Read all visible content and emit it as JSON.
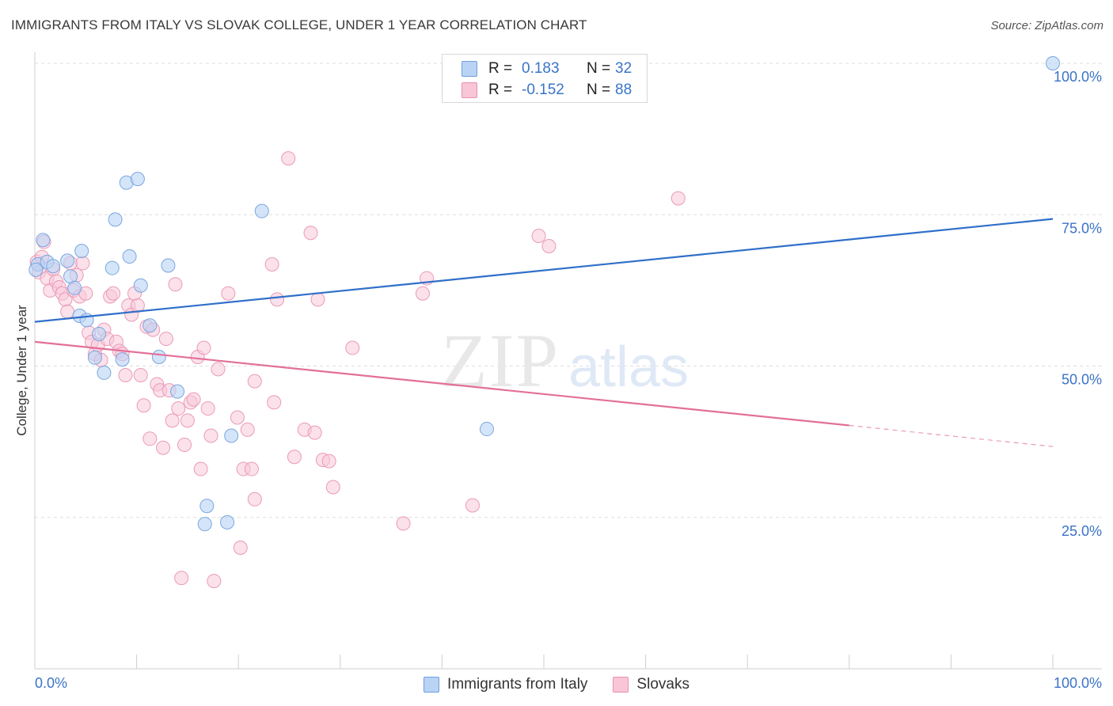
{
  "header": {
    "title": "IMMIGRANTS FROM ITALY VS SLOVAK COLLEGE, UNDER 1 YEAR CORRELATION CHART",
    "source": "Source: ZipAtlas.com"
  },
  "watermark": {
    "zip": "ZIP",
    "atlas": "atlas"
  },
  "legend": {
    "rows": [
      {
        "r_label": "R =",
        "r_value": "0.183",
        "n_label": "N =",
        "n_value": "32",
        "fill": "#b9d3f5",
        "stroke": "#6f9fdc"
      },
      {
        "r_label": "R =",
        "r_value": "-0.152",
        "n_label": "N =",
        "n_value": "88",
        "fill": "#f8c6d6",
        "stroke": "#e890ad"
      }
    ]
  },
  "bottom_legend": [
    {
      "label": "Immigrants from Italy",
      "fill": "#b9d3f5",
      "stroke": "#6f9fdc"
    },
    {
      "label": "Slovaks",
      "fill": "#f8c6d6",
      "stroke": "#e890ad"
    }
  ],
  "colors": {
    "blue_line": "#2f6fca",
    "pink_line": "#e36f99",
    "blue_point_fill": "#b9d3f5",
    "blue_point_stroke": "#7aa6df",
    "pink_point_fill": "#f8c9d8",
    "pink_point_stroke": "#eb9ab7",
    "tick_label": "#3b73c7",
    "grid": "#dedede"
  },
  "chart_data": {
    "type": "scatter",
    "title": "IMMIGRANTS FROM ITALY VS SLOVAK COLLEGE, UNDER 1 YEAR CORRELATION CHART",
    "xlabel": "",
    "ylabel": "College, Under 1 year",
    "xlim": [
      0,
      100
    ],
    "ylim": [
      0,
      100
    ],
    "x_tick_labels": [
      "0.0%",
      "100.0%"
    ],
    "y_ticks": [
      25,
      50,
      75,
      100
    ],
    "y_tick_labels": [
      "25.0%",
      "50.0%",
      "75.0%",
      "100.0%"
    ],
    "grid": true,
    "legend_position": "top-center",
    "series": [
      {
        "name": "Immigrants from Italy",
        "r": 0.183,
        "n": 32,
        "trend": {
          "x": [
            0,
            100
          ],
          "y": [
            57.3,
            74.3
          ]
        },
        "points": [
          [
            0.3,
            66.8
          ],
          [
            0.8,
            70.8
          ],
          [
            1.2,
            67.2
          ],
          [
            1.8,
            66.5
          ],
          [
            3.2,
            67.4
          ],
          [
            3.5,
            64.8
          ],
          [
            3.9,
            62.9
          ],
          [
            4.4,
            58.3
          ],
          [
            4.6,
            69.0
          ],
          [
            5.1,
            57.6
          ],
          [
            5.9,
            51.4
          ],
          [
            6.3,
            55.3
          ],
          [
            6.8,
            48.9
          ],
          [
            7.6,
            66.2
          ],
          [
            7.9,
            74.2
          ],
          [
            8.6,
            51.1
          ],
          [
            9.0,
            80.3
          ],
          [
            9.3,
            68.1
          ],
          [
            10.1,
            80.9
          ],
          [
            10.4,
            63.3
          ],
          [
            11.3,
            56.7
          ],
          [
            12.2,
            51.5
          ],
          [
            13.1,
            66.6
          ],
          [
            14.0,
            45.8
          ],
          [
            16.7,
            23.9
          ],
          [
            16.9,
            26.9
          ],
          [
            18.9,
            24.2
          ],
          [
            19.3,
            38.5
          ],
          [
            22.3,
            75.6
          ],
          [
            44.4,
            39.6
          ],
          [
            100.0,
            100.0
          ],
          [
            0.1,
            65.9
          ]
        ]
      },
      {
        "name": "Slovaks",
        "r": -0.152,
        "n": 88,
        "trend": {
          "x": [
            0,
            80
          ],
          "y": [
            54.0,
            40.2
          ]
        },
        "trend_dashed": {
          "x": [
            80,
            100
          ],
          "y": [
            40.2,
            36.7
          ]
        },
        "points": [
          [
            0.2,
            67.2
          ],
          [
            0.4,
            65.5
          ],
          [
            0.7,
            68.0
          ],
          [
            0.9,
            70.5
          ],
          [
            1.2,
            64.5
          ],
          [
            1.5,
            62.5
          ],
          [
            1.8,
            66.0
          ],
          [
            2.1,
            64.0
          ],
          [
            2.4,
            63.0
          ],
          [
            2.7,
            62.0
          ],
          [
            3.0,
            61.0
          ],
          [
            3.2,
            59.0
          ],
          [
            3.5,
            67.0
          ],
          [
            3.8,
            62.5
          ],
          [
            4.1,
            65.0
          ],
          [
            4.4,
            61.5
          ],
          [
            4.7,
            67.0
          ],
          [
            5.0,
            62.0
          ],
          [
            5.3,
            55.5
          ],
          [
            5.6,
            54.0
          ],
          [
            5.9,
            52.0
          ],
          [
            6.2,
            53.5
          ],
          [
            6.5,
            51.0
          ],
          [
            6.8,
            56.0
          ],
          [
            7.1,
            54.5
          ],
          [
            7.4,
            61.5
          ],
          [
            7.7,
            62.0
          ],
          [
            8.0,
            54.0
          ],
          [
            8.3,
            52.5
          ],
          [
            8.6,
            52.0
          ],
          [
            8.9,
            48.5
          ],
          [
            9.2,
            60.0
          ],
          [
            9.5,
            58.5
          ],
          [
            9.8,
            62.0
          ],
          [
            10.1,
            60.0
          ],
          [
            10.4,
            48.5
          ],
          [
            10.7,
            43.5
          ],
          [
            11.0,
            56.5
          ],
          [
            11.3,
            38.0
          ],
          [
            11.6,
            56.0
          ],
          [
            12.0,
            47.0
          ],
          [
            12.3,
            46.0
          ],
          [
            12.6,
            36.5
          ],
          [
            12.9,
            54.5
          ],
          [
            13.2,
            46.0
          ],
          [
            13.5,
            41.0
          ],
          [
            13.8,
            63.5
          ],
          [
            14.1,
            43.0
          ],
          [
            14.4,
            15.0
          ],
          [
            14.7,
            37.0
          ],
          [
            15.0,
            41.0
          ],
          [
            15.3,
            44.0
          ],
          [
            15.6,
            44.5
          ],
          [
            16.0,
            51.5
          ],
          [
            16.3,
            33.0
          ],
          [
            16.6,
            53.0
          ],
          [
            17.0,
            43.0
          ],
          [
            17.3,
            38.5
          ],
          [
            17.6,
            14.5
          ],
          [
            18.0,
            49.5
          ],
          [
            19.0,
            62.0
          ],
          [
            19.9,
            41.5
          ],
          [
            20.2,
            20.0
          ],
          [
            20.5,
            33.0
          ],
          [
            20.9,
            39.5
          ],
          [
            21.3,
            33.0
          ],
          [
            21.6,
            28.0
          ],
          [
            21.6,
            47.5
          ],
          [
            23.3,
            66.8
          ],
          [
            23.5,
            44.0
          ],
          [
            23.8,
            61.0
          ],
          [
            24.9,
            84.3
          ],
          [
            25.5,
            35.0
          ],
          [
            26.5,
            39.5
          ],
          [
            27.1,
            72.0
          ],
          [
            27.5,
            39.0
          ],
          [
            27.8,
            61.0
          ],
          [
            28.3,
            34.5
          ],
          [
            28.9,
            34.3
          ],
          [
            29.3,
            30.0
          ],
          [
            31.2,
            53.0
          ],
          [
            36.2,
            24.0
          ],
          [
            38.1,
            62.0
          ],
          [
            38.5,
            64.5
          ],
          [
            43.0,
            27.0
          ],
          [
            49.5,
            71.5
          ],
          [
            50.5,
            69.8
          ],
          [
            63.2,
            77.7
          ]
        ]
      }
    ]
  }
}
